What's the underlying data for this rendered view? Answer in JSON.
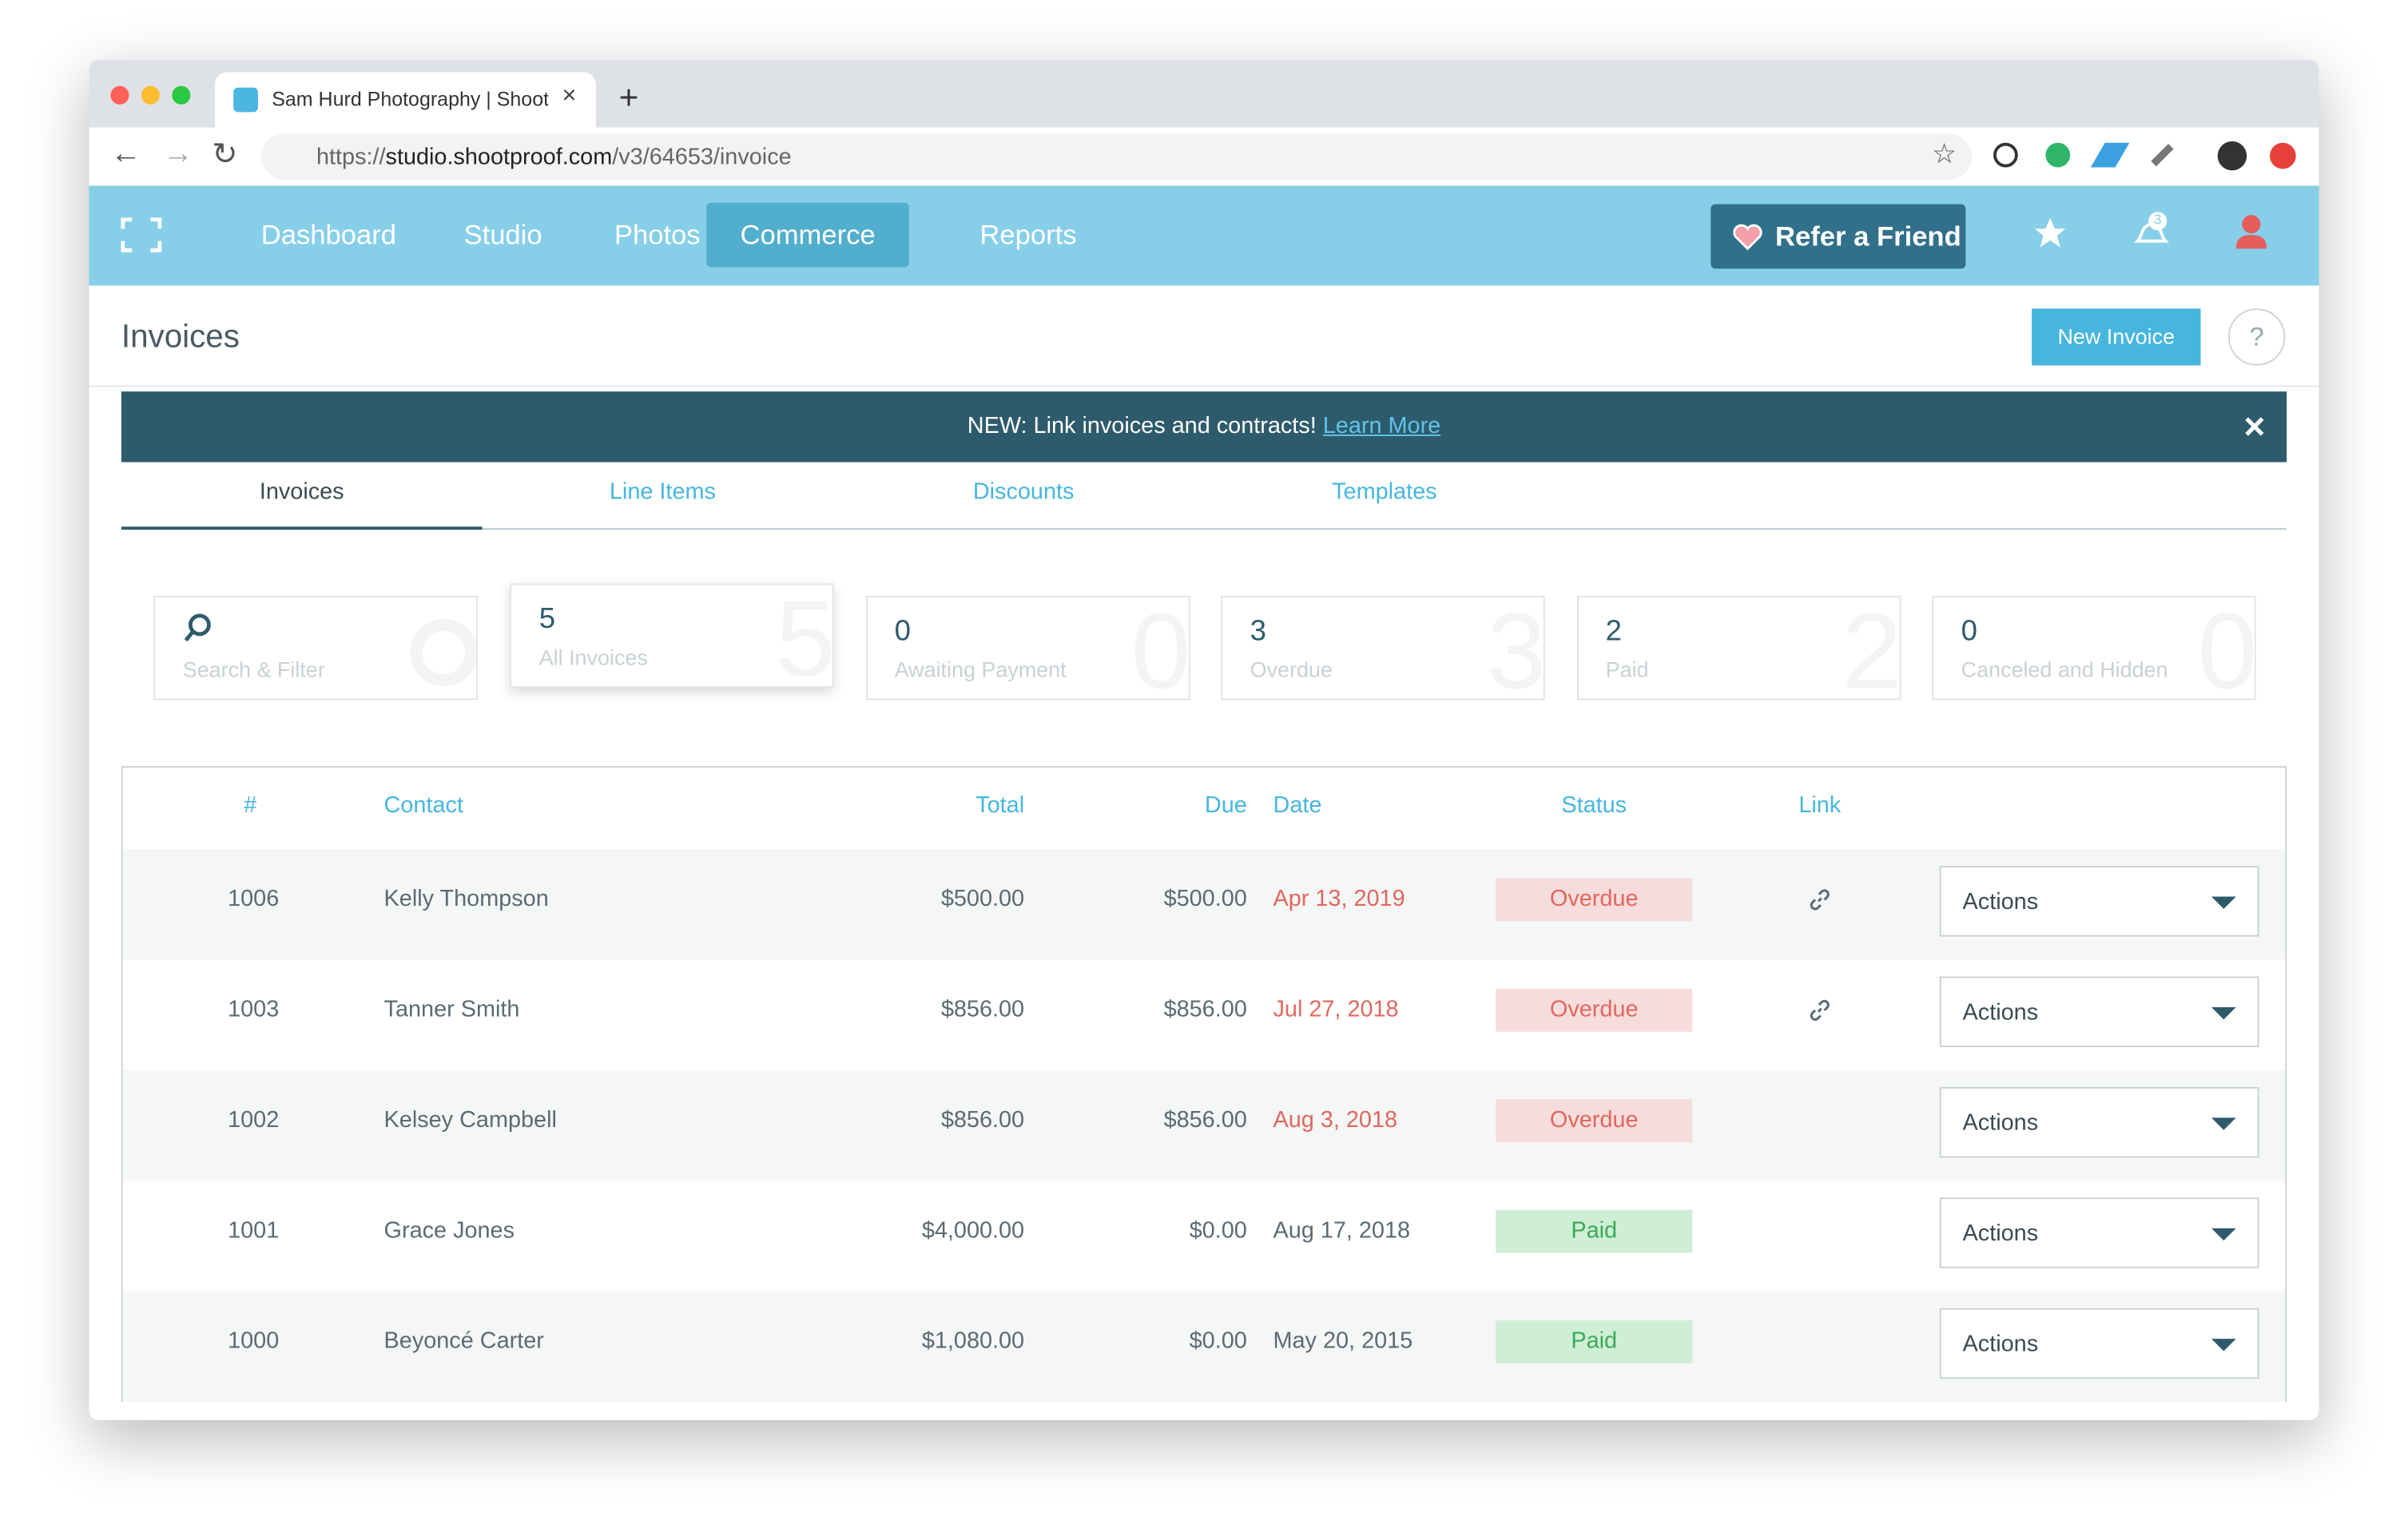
{
  "browser": {
    "tab_title": "Sam Hurd Photography | Shoot",
    "url_scheme": "https://",
    "url_host": "studio.shootproof.com",
    "url_path": "/v3/64653/invoice"
  },
  "nav": {
    "items": [
      {
        "label": "Dashboard",
        "active": false
      },
      {
        "label": "Studio",
        "active": false
      },
      {
        "label": "Photos",
        "active": false
      },
      {
        "label": "Commerce",
        "active": true
      },
      {
        "label": "Reports",
        "active": false
      }
    ],
    "refer_button": "Refer a Friend",
    "notification_count": "3"
  },
  "header": {
    "title": "Invoices",
    "new_button": "New Invoice",
    "help": "?"
  },
  "banner": {
    "text": "NEW: Link invoices and contracts!",
    "link": "Learn More"
  },
  "tabs": [
    {
      "label": "Invoices",
      "active": true
    },
    {
      "label": "Line Items",
      "active": false
    },
    {
      "label": "Discounts",
      "active": false
    },
    {
      "label": "Templates",
      "active": false
    }
  ],
  "search": {
    "label": "Search & Filter"
  },
  "cards": [
    {
      "count": "5",
      "label": "All Invoices",
      "selected": true
    },
    {
      "count": "0",
      "label": "Awaiting Payment",
      "selected": false
    },
    {
      "count": "3",
      "label": "Overdue",
      "selected": false
    },
    {
      "count": "2",
      "label": "Paid",
      "selected": false
    },
    {
      "count": "0",
      "label": "Canceled and Hidden",
      "selected": false
    }
  ],
  "table": {
    "headers": [
      "#",
      "Contact",
      "Total",
      "Due",
      "Date",
      "Status",
      "Link"
    ],
    "rows": [
      {
        "number": "1006",
        "contact": "Kelly Thompson",
        "total": "$500.00",
        "due": "$500.00",
        "date": "Apr 13, 2019",
        "date_color": "#e0675e",
        "status": "Overdue",
        "status_fill": "#f6dcdc",
        "status_color": "#e0675e",
        "link": true,
        "action": "Actions"
      },
      {
        "number": "1003",
        "contact": "Tanner Smith",
        "total": "$856.00",
        "due": "$856.00",
        "date": "Jul 27, 2018",
        "date_color": "#e0675e",
        "status": "Overdue",
        "status_fill": "#f6dcdc",
        "status_color": "#e0675e",
        "link": true,
        "action": "Actions"
      },
      {
        "number": "1002",
        "contact": "Kelsey Campbell",
        "total": "$856.00",
        "due": "$856.00",
        "date": "Aug 3, 2018",
        "date_color": "#e0675e",
        "status": "Overdue",
        "status_fill": "#f6dcdc",
        "status_color": "#e0675e",
        "link": false,
        "action": "Actions"
      },
      {
        "number": "1001",
        "contact": "Grace Jones",
        "total": "$4,000.00",
        "due": "$0.00",
        "date": "Aug 17, 2018",
        "date_color": "#5b6b73",
        "status": "Paid",
        "status_fill": "#cfeed6",
        "status_color": "#3aaa55",
        "link": false,
        "action": "Actions"
      },
      {
        "number": "1000",
        "contact": "Beyoncé Carter",
        "total": "$1,080.00",
        "due": "$0.00",
        "date": "May 20, 2015",
        "date_color": "#5b6b73",
        "status": "Paid",
        "status_fill": "#cfeed6",
        "status_color": "#3aaa55",
        "link": false,
        "action": "Actions"
      }
    ]
  }
}
